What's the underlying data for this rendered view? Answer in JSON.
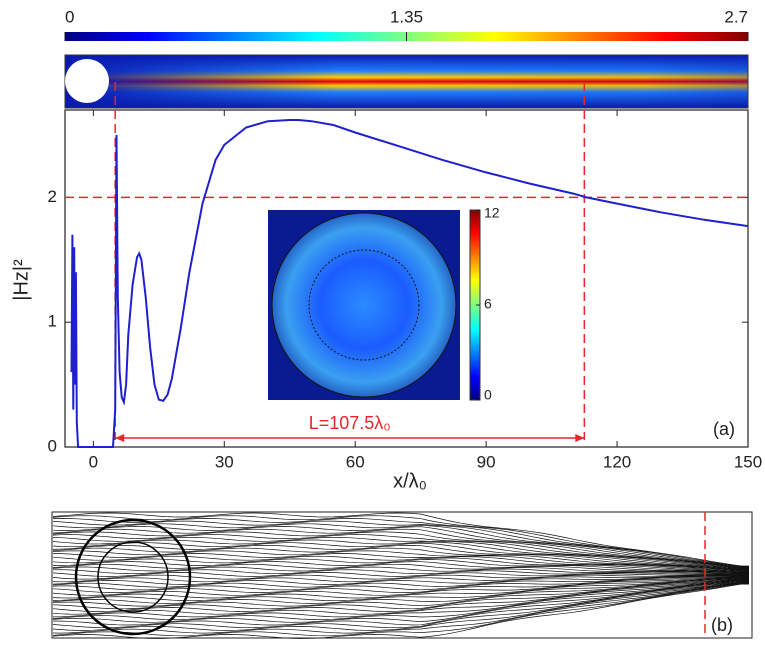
{
  "chart_data": {
    "type": "line",
    "xlabel": "x/λ₀",
    "ylabel": "|Hz|²",
    "xlim": [
      -6.5,
      150
    ],
    "xticks": [
      0,
      30,
      60,
      90,
      120,
      150
    ],
    "ylim": [
      0,
      2.7
    ],
    "yticks": [
      0,
      1,
      2
    ],
    "colorbar_ticks": [
      0,
      1.35,
      2.7
    ],
    "inset_colorbar_ticks": [
      0,
      6,
      12
    ],
    "annotation": "L=107.5λ₀",
    "reference_x": [
      5,
      112.5
    ],
    "reference_y": 2,
    "reference_color": "#e8262b",
    "panel_labels": [
      "(a)",
      "(b)"
    ],
    "series": [
      {
        "color": "#1f1fd0",
        "x": [
          -5,
          -4.8,
          -4.6,
          -4.4,
          -4.2,
          -4,
          -3.8,
          -3.5,
          4.5,
          5,
          5.3,
          5.6,
          6,
          6.5,
          7,
          7.5,
          8,
          9,
          10,
          10.5,
          11,
          12,
          13,
          14,
          15,
          16,
          17,
          18,
          20,
          22,
          25,
          28,
          30,
          35,
          40,
          45,
          47,
          50,
          55,
          60,
          70,
          80,
          90,
          100,
          110,
          113,
          120,
          130,
          140,
          150
        ],
        "values": [
          0.6,
          1.7,
          0.3,
          1.6,
          0.5,
          1.4,
          0.2,
          0,
          0,
          0.3,
          2.5,
          1.2,
          0.6,
          0.4,
          0.36,
          0.5,
          0.9,
          1.3,
          1.52,
          1.55,
          1.5,
          1.2,
          0.8,
          0.5,
          0.38,
          0.37,
          0.42,
          0.55,
          0.95,
          1.4,
          1.95,
          2.3,
          2.42,
          2.56,
          2.61,
          2.62,
          2.62,
          2.61,
          2.58,
          2.52,
          2.41,
          2.3,
          2.2,
          2.11,
          2.03,
          2.0,
          1.95,
          1.88,
          1.82,
          1.77
        ]
      }
    ]
  }
}
